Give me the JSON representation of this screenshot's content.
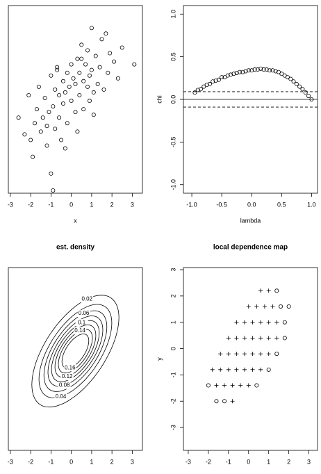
{
  "chart_data": [
    {
      "type": "scatter",
      "x_label": "x",
      "xlim": [
        -3.1,
        3.5
      ],
      "ylim": [
        -3.3,
        3.4
      ],
      "xticks": [
        -3,
        -2,
        -1,
        0,
        1,
        2,
        3
      ],
      "series": [
        {
          "marker": "circle",
          "color": "#000000",
          "x": [
            -2.6,
            -2.3,
            -2.1,
            -1.9,
            -1.8,
            -1.7,
            -1.6,
            -1.5,
            -1.4,
            -1.3,
            -1.2,
            -1.1,
            -1.0,
            -1.0,
            -0.9,
            -0.8,
            -0.8,
            -0.7,
            -0.6,
            -0.6,
            -0.5,
            -0.4,
            -0.4,
            -0.3,
            -0.2,
            -0.2,
            -0.1,
            0.0,
            0.0,
            0.1,
            0.2,
            0.2,
            0.3,
            0.4,
            0.4,
            0.5,
            0.6,
            0.6,
            0.7,
            0.8,
            0.8,
            0.9,
            1.0,
            1.0,
            1.1,
            1.2,
            1.3,
            1.4,
            1.5,
            1.6,
            1.8,
            1.9,
            2.1,
            2.3,
            2.5,
            3.1,
            -0.9,
            -0.7,
            0.3,
            0.9,
            1.7,
            -1.2,
            -0.3,
            0.5,
            1.1,
            -2.0
          ],
          "y": [
            -0.6,
            -1.2,
            0.2,
            -2.0,
            -0.8,
            -0.3,
            0.5,
            -1.1,
            -0.6,
            0.1,
            -1.6,
            -0.4,
            -2.6,
            0.9,
            -0.2,
            -1.0,
            0.4,
            1.2,
            -0.6,
            0.2,
            -1.4,
            0.7,
            -0.1,
            0.3,
            1.0,
            -0.8,
            0.5,
            0.0,
            1.3,
            0.8,
            -0.4,
            0.6,
            1.5,
            0.2,
            1.0,
            2.0,
            0.7,
            -0.3,
            1.3,
            0.5,
            1.8,
            0.9,
            1.1,
            2.6,
            0.3,
            1.6,
            0.6,
            1.2,
            2.2,
            0.4,
            1.0,
            1.7,
            1.4,
            0.8,
            1.9,
            1.3,
            -3.2,
            1.1,
            -1.1,
            0.0,
            2.4,
            -0.9,
            -1.7,
            1.5,
            -0.5,
            -1.4
          ]
        }
      ]
    },
    {
      "type": "scatter",
      "x_label": "lambda",
      "y_label": "chi",
      "xlim": [
        -1.14,
        1.1
      ],
      "ylim": [
        -1.1,
        1.1
      ],
      "xticks": [
        {
          "value": -1,
          "label": "-1.0"
        },
        -0.5,
        {
          "value": 0,
          "label": "0.0"
        },
        0.5,
        {
          "value": 1,
          "label": "1.0"
        }
      ],
      "yticks": [
        {
          "value": -1,
          "label": "-1.0"
        },
        -0.5,
        {
          "value": 0,
          "label": "0.0"
        },
        0.5,
        {
          "value": 1,
          "label": "1.0"
        }
      ],
      "hlines": [
        {
          "value": 0,
          "style": "solid"
        },
        {
          "value": 0.09,
          "style": "dashed"
        },
        {
          "value": -0.09,
          "style": "dashed"
        }
      ],
      "series": [
        {
          "marker": "circle",
          "color": "#000000",
          "x": [
            -0.95,
            -0.9,
            -0.85,
            -0.8,
            -0.75,
            -0.7,
            -0.65,
            -0.6,
            -0.55,
            -0.5,
            -0.45,
            -0.4,
            -0.35,
            -0.3,
            -0.25,
            -0.2,
            -0.15,
            -0.1,
            -0.05,
            0,
            0.05,
            0.1,
            0.15,
            0.2,
            0.25,
            0.3,
            0.35,
            0.4,
            0.45,
            0.5,
            0.55,
            0.6,
            0.65,
            0.7,
            0.75,
            0.8,
            0.85,
            0.9,
            0.95,
            1.0
          ],
          "y": [
            0.08,
            0.11,
            0.12,
            0.15,
            0.17,
            0.18,
            0.21,
            0.22,
            0.23,
            0.26,
            0.26,
            0.28,
            0.29,
            0.3,
            0.31,
            0.32,
            0.32,
            0.33,
            0.34,
            0.34,
            0.35,
            0.35,
            0.36,
            0.35,
            0.35,
            0.34,
            0.34,
            0.33,
            0.32,
            0.3,
            0.28,
            0.26,
            0.24,
            0.21,
            0.18,
            0.15,
            0.12,
            0.08,
            0.04,
            0.0
          ]
        }
      ]
    },
    {
      "type": "contour",
      "title": "est. density",
      "xlim": [
        -3.1,
        3.5
      ],
      "ylim": [
        -3.5,
        3.5
      ],
      "xticks": [
        -3,
        -2,
        -1,
        0,
        1,
        2,
        3
      ],
      "mean": [
        0.2,
        0.3
      ],
      "correlation": 0.6,
      "levels": [
        0.02,
        0.04,
        0.06,
        0.08,
        0.1,
        0.12,
        0.14,
        0.16
      ]
    },
    {
      "type": "scatter",
      "title": "local dependence map",
      "y_label": "y",
      "xlim": [
        -3.24,
        3.43
      ],
      "ylim": [
        -3.87,
        3.08
      ],
      "xticks": [
        -3,
        -2,
        -1,
        0,
        1,
        2,
        3
      ],
      "yticks": [
        -3,
        -2,
        -1,
        0,
        1,
        2,
        3
      ],
      "series": [
        {
          "marker": "plus",
          "color": "#000000",
          "x": [
            0.6,
            1.0,
            0,
            0.4,
            0.8,
            1.2,
            -0.6,
            -0.2,
            0.2,
            0.6,
            1.0,
            1.4,
            -1.0,
            -0.6,
            -0.2,
            0.2,
            0.6,
            1.0,
            1.4,
            -1.4,
            -1.0,
            -0.6,
            -0.2,
            0.2,
            0.6,
            1.0,
            -1.8,
            -1.4,
            -1.0,
            -0.6,
            -0.2,
            0.2,
            0.6,
            -1.6,
            -1.2,
            -0.8,
            -0.4,
            0.0,
            -0.8
          ],
          "y": [
            2.2,
            2.2,
            1.6,
            1.6,
            1.6,
            1.6,
            1.0,
            1.0,
            1.0,
            1.0,
            1.0,
            1.0,
            0.4,
            0.4,
            0.4,
            0.4,
            0.4,
            0.4,
            0.4,
            -0.2,
            -0.2,
            -0.2,
            -0.2,
            -0.2,
            -0.2,
            -0.2,
            -0.8,
            -0.8,
            -0.8,
            -0.8,
            -0.8,
            -0.8,
            -0.8,
            -1.4,
            -1.4,
            -1.4,
            -1.4,
            -1.4,
            -2.0
          ]
        },
        {
          "marker": "circle",
          "color": "#000000",
          "x": [
            1.4,
            1.6,
            2.0,
            1.8,
            1.8,
            1.4,
            1.0,
            -2.0,
            0.4,
            -1.6,
            -1.2
          ],
          "y": [
            2.2,
            1.6,
            1.6,
            1.0,
            0.4,
            -0.2,
            -0.8,
            -1.4,
            -1.4,
            -2.0,
            -2.0
          ]
        }
      ]
    }
  ]
}
